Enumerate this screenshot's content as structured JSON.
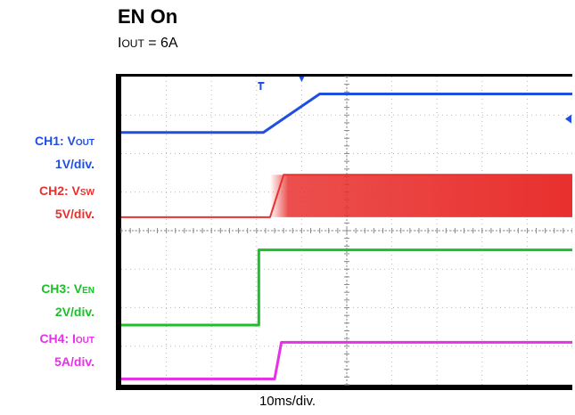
{
  "title": "EN On",
  "subtitle": {
    "prefix": "I",
    "sub": "OUT",
    "suffix": " = 6A"
  },
  "timebase": "10ms/div.",
  "channels": [
    {
      "id": "ch1",
      "name": "CH1: V",
      "sub": "OUT",
      "scale": "1V/div.",
      "color": "#1f4fe0"
    },
    {
      "id": "ch2",
      "name": "CH2: V",
      "sub": "SW",
      "scale": "5V/div.",
      "color": "#e8302e"
    },
    {
      "id": "ch3",
      "name": "CH3: V",
      "sub": "EN",
      "scale": "2V/div.",
      "color": "#1dbf2a"
    },
    {
      "id": "ch4",
      "name": "CH4: I",
      "sub": "OUT",
      "scale": "5A/div.",
      "color": "#e632e6"
    }
  ],
  "chart_data": {
    "type": "line",
    "title": "EN On",
    "xlabel": "10ms/div.",
    "grid": true,
    "xlim": [
      0,
      10
    ],
    "ylim": [
      0,
      8
    ],
    "x_units": "divisions",
    "y_units": "divisions",
    "series": [
      {
        "name": "CH1: VOUT",
        "color": "#1f4fe0",
        "x": [
          0,
          3.15,
          4.4,
          10
        ],
        "y": [
          6.55,
          6.55,
          7.55,
          7.55
        ]
      },
      {
        "name": "CH2: VSW",
        "color": "#e8302e",
        "x": [
          0,
          3.3,
          3.6,
          10
        ],
        "y": [
          4.35,
          4.35,
          5.45,
          5.45
        ],
        "band": {
          "x_start": 3.3,
          "x_end": 10,
          "y_low": 4.35,
          "y_high": 5.45
        }
      },
      {
        "name": "CH3: VEN",
        "color": "#1dbf2a",
        "x": [
          0,
          3.05,
          3.05,
          10
        ],
        "y": [
          1.55,
          1.55,
          3.5,
          3.5
        ]
      },
      {
        "name": "CH4: IOUT",
        "color": "#e632e6",
        "x": [
          0,
          3.4,
          3.55,
          10
        ],
        "y": [
          0.15,
          0.15,
          1.1,
          1.1
        ]
      }
    ],
    "markers": {
      "trigger_x": 4.0,
      "ch1_ref_y": 6.9
    }
  }
}
